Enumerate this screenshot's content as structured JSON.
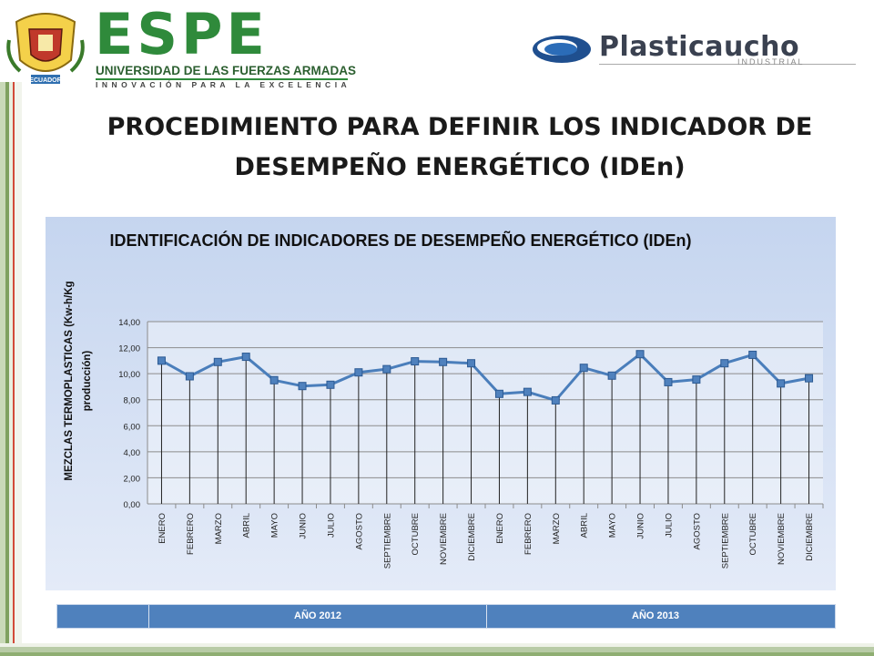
{
  "header": {
    "espe": {
      "name": "ESPE",
      "subtitle": "UNIVERSIDAD DE LAS FUERZAS ARMADAS",
      "motto": "INNOVACIÓN PARA LA EXCELENCIA",
      "crest_caption": "ECUADOR"
    },
    "plasticaucho": {
      "name": "Plasticaucho",
      "subtitle": "INDUSTRIAL"
    }
  },
  "slide_title": "PROCEDIMIENTO PARA DEFINIR LOS INDICADOR DE DESEMPEÑO ENERGÉTICO (IDEn)",
  "colors": {
    "series_line": "#4a7ebb",
    "marker": "#4f81bd",
    "year_bar": "#4f81bd",
    "espe_green": "#2f8a3b"
  },
  "chart_data": {
    "type": "line",
    "title": "IDENTIFICACIÓN DE INDICADORES DE DESEMPEÑO ENERGÉTICO (IDEn)",
    "ylabel": "MEZCLAS TERMOPLASTICAS (Kw-h/Kg producción)",
    "xlabel": "",
    "ylim": [
      0,
      14
    ],
    "yticks": [
      "0,00",
      "2,00",
      "4,00",
      "6,00",
      "8,00",
      "10,00",
      "12,00",
      "14,00"
    ],
    "grid": true,
    "legend": "none",
    "categories": [
      "ENERO",
      "FEBRERO",
      "MARZO",
      "ABRIL",
      "MAYO",
      "JUNIO",
      "JULIO",
      "AGOSTO",
      "SEPTIEMBRE",
      "OCTUBRE",
      "NOVIEMBRE",
      "DICIEMBRE",
      "ENERO",
      "FEBRERO",
      "MARZO",
      "ABRIL",
      "MAYO",
      "JUNIO",
      "JULIO",
      "AGOSTO",
      "SEPTIEMBRE",
      "OCTUBRE",
      "NOVIEMBRE",
      "DICIEMBRE"
    ],
    "series": [
      {
        "values": [
          11.0,
          9.8,
          10.9,
          11.3,
          9.5,
          9.05,
          9.15,
          10.1,
          10.35,
          10.95,
          10.9,
          10.8,
          8.45,
          8.6,
          7.95,
          10.45,
          9.85,
          11.5,
          9.35,
          9.55,
          10.8,
          11.45,
          9.25,
          9.65
        ]
      }
    ],
    "groups": [
      {
        "label": "AÑO 2012",
        "span": 12
      },
      {
        "label": "AÑO 2013",
        "span": 12
      }
    ]
  }
}
